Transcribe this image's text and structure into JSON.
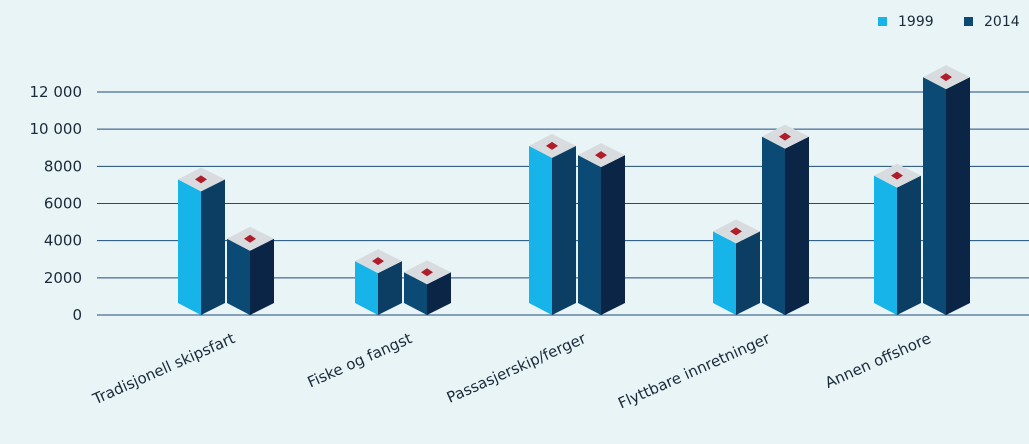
{
  "chart_data": {
    "type": "bar",
    "title": "",
    "xlabel": "",
    "ylabel": "",
    "categories": [
      "Tradisjonell skipsfart",
      "Fiske og fangst",
      "Passasjerskip/ferger",
      "Flyttbare innretninger",
      "Annen offshore"
    ],
    "series": [
      {
        "name": "1999",
        "values": [
          7300,
          2900,
          9100,
          4500,
          7500
        ]
      },
      {
        "name": "2014",
        "values": [
          4100,
          2300,
          8600,
          9600,
          12800
        ]
      }
    ],
    "ylim": [
      0,
      12000
    ],
    "yticks": [
      0,
      2000,
      4000,
      6000,
      8000,
      10000,
      12000
    ],
    "ytick_labels": [
      "0",
      "2000",
      "4000",
      "6000",
      "8000",
      "10 000",
      "12 000"
    ],
    "grid": true,
    "legend_position": "top-right",
    "colors": {
      "1999_front": "#16b4e8",
      "1999_side": "#0b3e62",
      "2014_front": "#0b4a75",
      "2014_side": "#0a2545",
      "cap": "#d9dcdf",
      "cap_marker": "#b01c2a",
      "gridline": "#1d4d7a"
    }
  }
}
